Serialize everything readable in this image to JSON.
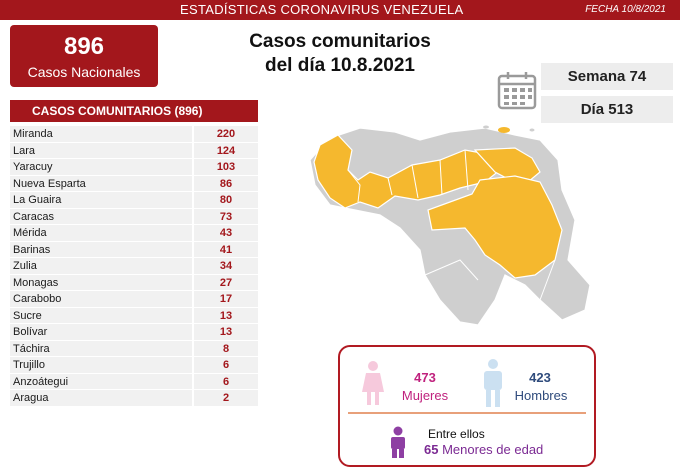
{
  "header": {
    "title": "ESTADÍSTICAS CORONAVIRUS VENEZUELA",
    "date": "FECHA 10/8/2021"
  },
  "national": {
    "count": "896",
    "label": "Casos Nacionales"
  },
  "headline": {
    "line1": "Casos comunitarios",
    "line2": "del día 10.8.2021"
  },
  "counters": {
    "week": "Semana 74",
    "day": "Día 513"
  },
  "table": {
    "title": "CASOS COMUNITARIOS (896)",
    "rows": [
      {
        "state": "Miranda",
        "value": "220"
      },
      {
        "state": "Lara",
        "value": "124"
      },
      {
        "state": "Yaracuy",
        "value": "103"
      },
      {
        "state": "Nueva Esparta",
        "value": "86"
      },
      {
        "state": "La Guaira",
        "value": "80"
      },
      {
        "state": "Caracas",
        "value": "73"
      },
      {
        "state": "Mérida",
        "value": "43"
      },
      {
        "state": "Barinas",
        "value": "41"
      },
      {
        "state": "Zulia",
        "value": "34"
      },
      {
        "state": "Monagas",
        "value": "27"
      },
      {
        "state": "Carabobo",
        "value": "17"
      },
      {
        "state": "Sucre",
        "value": "13"
      },
      {
        "state": "Bolívar",
        "value": "13"
      },
      {
        "state": "Táchira",
        "value": "8"
      },
      {
        "state": "Trujillo",
        "value": "6"
      },
      {
        "state": "Anzoátegui",
        "value": "6"
      },
      {
        "state": "Aragua",
        "value": "2"
      }
    ]
  },
  "gender": {
    "female_count": "473",
    "female_label": "Mujeres",
    "male_count": "423",
    "male_label": "Hombres"
  },
  "minors": {
    "title": "Entre ellos",
    "count": "65",
    "label": "Menores de edad"
  },
  "colors": {
    "brand_red": "#a3171c",
    "map_highlight": "#f5b82e",
    "map_base": "#cfcfcf",
    "female": "#c0227e",
    "male": "#2f4b7c",
    "minors": "#7b2a93"
  }
}
